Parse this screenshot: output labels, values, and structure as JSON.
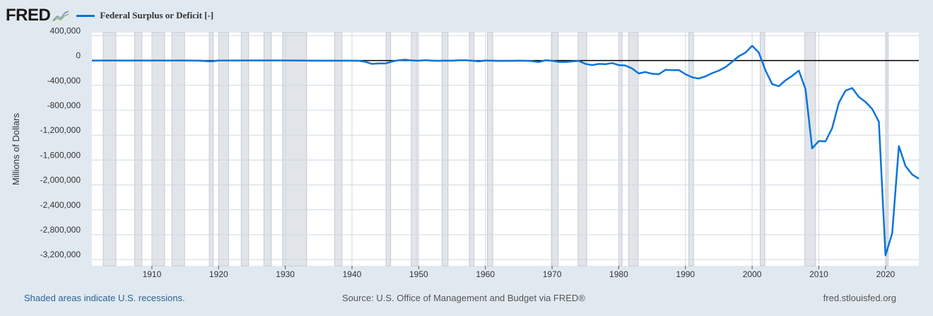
{
  "header": {
    "logo_text": "FRED",
    "legend_label": "Federal Surplus or Deficit [-]"
  },
  "footer": {
    "left": "Shaded areas indicate U.S. recessions.",
    "center": "Source: U.S. Office of Management and Budget via FRED®",
    "right": "fred.stlouisfed.org"
  },
  "colors": {
    "series": "#0c74d8",
    "recession": "#e1e5ea",
    "background": "#e1e9f0",
    "plot": "#ffffff"
  },
  "chart_data": {
    "type": "line",
    "title": "",
    "xlabel": "",
    "ylabel": "Millions of Dollars",
    "xlim": [
      1901,
      2025
    ],
    "ylim": [
      -3300000,
      450000
    ],
    "y_ticks": [
      400000,
      0,
      -400000,
      -800000,
      -1200000,
      -1600000,
      -2000000,
      -2400000,
      -2800000,
      -3200000
    ],
    "y_tick_labels": [
      "400,000",
      "0",
      "-400,000",
      "-800,000",
      "-1,200,000",
      "-1,600,000",
      "-2,000,000",
      "-2,400,000",
      "-2,800,000",
      "-3,200,000"
    ],
    "x_ticks": [
      1910,
      1920,
      1930,
      1940,
      1950,
      1960,
      1970,
      1980,
      1990,
      2000,
      2010,
      2020
    ],
    "x_tick_labels": [
      "1910",
      "1920",
      "1930",
      "1940",
      "1950",
      "1960",
      "1970",
      "1980",
      "1990",
      "2000",
      "2010",
      "2020"
    ],
    "grid": true,
    "zero_line": true,
    "legend": "top-left",
    "recessions": [
      [
        1902.7,
        1904.6
      ],
      [
        1907.4,
        1908.5
      ],
      [
        1910.0,
        1911.9
      ],
      [
        1913.0,
        1914.9
      ],
      [
        1918.6,
        1919.2
      ],
      [
        1920.0,
        1921.5
      ],
      [
        1923.4,
        1924.5
      ],
      [
        1926.8,
        1927.9
      ],
      [
        1929.6,
        1933.2
      ],
      [
        1937.4,
        1938.5
      ],
      [
        1945.1,
        1945.8
      ],
      [
        1948.9,
        1949.8
      ],
      [
        1953.5,
        1954.4
      ],
      [
        1957.6,
        1958.3
      ],
      [
        1960.3,
        1961.1
      ],
      [
        1969.9,
        1970.9
      ],
      [
        1973.9,
        1975.2
      ],
      [
        1980.0,
        1980.5
      ],
      [
        1981.5,
        1982.9
      ],
      [
        1990.5,
        1991.2
      ],
      [
        2001.2,
        2001.9
      ],
      [
        2007.9,
        2009.5
      ],
      [
        2020.1,
        2020.4
      ]
    ],
    "series": [
      {
        "name": "Federal Surplus or Deficit [-]",
        "x": [
          1901,
          1905,
          1910,
          1915,
          1917,
          1918,
          1919,
          1920,
          1925,
          1930,
          1935,
          1940,
          1941,
          1942,
          1943,
          1944,
          1945,
          1946,
          1947,
          1948,
          1949,
          1950,
          1951,
          1952,
          1953,
          1954,
          1955,
          1956,
          1957,
          1958,
          1959,
          1960,
          1961,
          1962,
          1963,
          1964,
          1965,
          1966,
          1967,
          1968,
          1969,
          1970,
          1971,
          1972,
          1973,
          1974,
          1975,
          1976,
          1977,
          1978,
          1979,
          1980,
          1981,
          1982,
          1983,
          1984,
          1985,
          1986,
          1987,
          1988,
          1989,
          1990,
          1991,
          1992,
          1993,
          1994,
          1995,
          1996,
          1997,
          1998,
          1999,
          2000,
          2001,
          2002,
          2003,
          2004,
          2005,
          2006,
          2007,
          2008,
          2009,
          2010,
          2011,
          2012,
          2013,
          2014,
          2015,
          2016,
          2017,
          2018,
          2019,
          2020,
          2021,
          2022,
          2023,
          2024,
          2025
        ],
        "values": [
          0,
          0,
          0,
          0,
          -1000,
          -9000,
          -13000,
          0,
          1000,
          1000,
          -3000,
          -3000,
          -5000,
          -20000,
          -55000,
          -47000,
          -48000,
          -16000,
          4000,
          12000,
          1000,
          -3000,
          6000,
          -2000,
          -6000,
          -1000,
          -3000,
          4000,
          3000,
          -3000,
          -13000,
          0,
          -3000,
          -7000,
          -5000,
          -6000,
          -1000,
          -4000,
          -9000,
          -25000,
          3000,
          -3000,
          -23000,
          -23000,
          -15000,
          -6000,
          -53000,
          -74000,
          -54000,
          -59000,
          -41000,
          -74000,
          -79000,
          -128000,
          -208000,
          -185000,
          -212000,
          -221000,
          -150000,
          -155000,
          -153000,
          -221000,
          -269000,
          -290000,
          -255000,
          -203000,
          -164000,
          -107000,
          -22000,
          69000,
          126000,
          236000,
          128000,
          -158000,
          -378000,
          -413000,
          -318000,
          -248000,
          -161000,
          -459000,
          -1413000,
          -1294000,
          -1300000,
          -1087000,
          -680000,
          -485000,
          -442000,
          -585000,
          -665000,
          -779000,
          -984000,
          -3132000,
          -2775000,
          -1376000,
          -1695000,
          -1833000,
          -1900000
        ]
      }
    ]
  }
}
